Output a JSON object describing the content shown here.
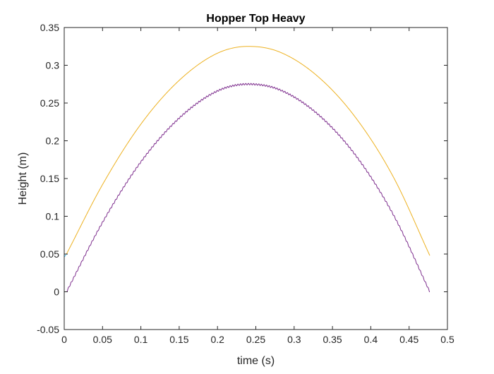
{
  "chart_data": {
    "type": "line",
    "title": "Hopper Top Heavy",
    "xlabel": "time (s)",
    "ylabel": "Height (m)",
    "xlim": [
      0,
      0.5
    ],
    "ylim": [
      -0.05,
      0.35
    ],
    "x_ticks": [
      "0",
      "0.05",
      "0.1",
      "0.15",
      "0.2",
      "0.25",
      "0.3",
      "0.35",
      "0.4",
      "0.45",
      "0.5"
    ],
    "y_ticks": [
      "-0.05",
      "0",
      "0.05",
      "0.1",
      "0.15",
      "0.2",
      "0.25",
      "0.3",
      "0.35"
    ],
    "grid": false,
    "legend": "none",
    "series": [
      {
        "color": "#EDB120",
        "x": [
          0.003,
          0.05,
          0.1,
          0.15,
          0.2,
          0.24,
          0.28,
          0.33,
          0.38,
          0.43,
          0.477
        ],
        "y": [
          0.05,
          0.142,
          0.222,
          0.28,
          0.316,
          0.325,
          0.318,
          0.286,
          0.231,
          0.151,
          0.048
        ]
      },
      {
        "color": "#7E2F8E",
        "x": [
          0.003,
          0.05,
          0.1,
          0.15,
          0.2,
          0.24,
          0.28,
          0.33,
          0.38,
          0.43,
          0.477
        ],
        "y": [
          0.0,
          0.092,
          0.172,
          0.23,
          0.266,
          0.275,
          0.268,
          0.236,
          0.181,
          0.101,
          0.0
        ]
      },
      {
        "color": "#4DBEEE",
        "x": [
          0.0,
          0.003
        ],
        "y": [
          0.046,
          0.05
        ]
      }
    ]
  }
}
